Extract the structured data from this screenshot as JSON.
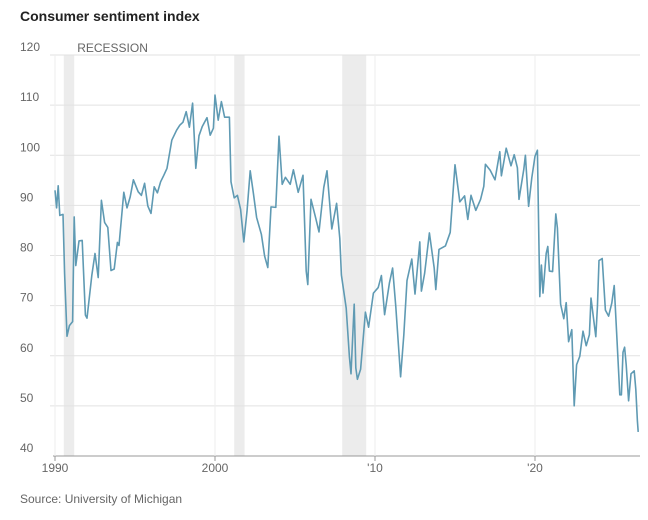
{
  "chart_data": {
    "type": "line",
    "title": "Consumer sentiment index",
    "source": "Source: University of Michigan",
    "recession_label": "RECESSION",
    "recessions": [
      [
        1990.55,
        1991.2
      ],
      [
        2001.2,
        2001.85
      ],
      [
        2007.95,
        2009.45
      ]
    ],
    "recession_color": "#ececec",
    "xlim": [
      1990,
      2026.5
    ],
    "xticks": [
      1990,
      2000,
      {
        "value": 2010,
        "label": "'10"
      },
      {
        "value": 2020,
        "label": "'20"
      }
    ],
    "ylim": [
      40,
      120
    ],
    "yticks": [
      40,
      50,
      60,
      70,
      80,
      90,
      100,
      110,
      120
    ],
    "grid": true,
    "series": [
      {
        "color": "#5f9ab3",
        "x": [
          1990.0,
          1990.1,
          1990.2,
          1990.3,
          1990.5,
          1990.6,
          1990.75,
          1990.9,
          1991.1,
          1991.2,
          1991.3,
          1991.5,
          1991.7,
          1991.9,
          1992.0,
          1992.3,
          1992.5,
          1992.7,
          1992.9,
          1993.1,
          1993.3,
          1993.5,
          1993.7,
          1993.9,
          1994.0,
          1994.3,
          1994.5,
          1994.7,
          1994.9,
          1995.2,
          1995.4,
          1995.6,
          1995.8,
          1996.0,
          1996.2,
          1996.4,
          1996.6,
          1996.8,
          1997.0,
          1997.3,
          1997.6,
          1997.8,
          1998.0,
          1998.2,
          1998.4,
          1998.6,
          1998.8,
          1999.0,
          1999.2,
          1999.5,
          1999.7,
          1999.9,
          2000.0,
          2000.2,
          2000.4,
          2000.6,
          2000.9,
          2001.0,
          2001.2,
          2001.4,
          2001.6,
          2001.8,
          2002.0,
          2002.2,
          2002.4,
          2002.6,
          2002.9,
          2003.1,
          2003.3,
          2003.5,
          2003.8,
          2004.0,
          2004.2,
          2004.4,
          2004.7,
          2004.9,
          2005.2,
          2005.5,
          2005.7,
          2005.8,
          2006.0,
          2006.3,
          2006.5,
          2006.8,
          2007.0,
          2007.3,
          2007.6,
          2007.8,
          2007.9,
          2008.2,
          2008.4,
          2008.5,
          2008.7,
          2008.8,
          2008.9,
          2009.1,
          2009.4,
          2009.6,
          2009.9,
          2010.2,
          2010.4,
          2010.6,
          2010.9,
          2011.1,
          2011.3,
          2011.6,
          2011.8,
          2012.0,
          2012.3,
          2012.5,
          2012.8,
          2012.9,
          2013.1,
          2013.4,
          2013.7,
          2013.8,
          2014.0,
          2014.4,
          2014.7,
          2014.9,
          2015.0,
          2015.3,
          2015.6,
          2015.8,
          2016.0,
          2016.3,
          2016.6,
          2016.8,
          2016.9,
          2017.2,
          2017.5,
          2017.8,
          2017.9,
          2018.2,
          2018.5,
          2018.7,
          2018.9,
          2019.0,
          2019.3,
          2019.4,
          2019.6,
          2019.8,
          2020.0,
          2020.15,
          2020.3,
          2020.4,
          2020.5,
          2020.7,
          2020.8,
          2020.9,
          2021.1,
          2021.3,
          2021.4,
          2021.6,
          2021.8,
          2021.95,
          2022.1,
          2022.3,
          2022.45,
          2022.6,
          2022.8,
          2023.0,
          2023.2,
          2023.4,
          2023.5,
          2023.8,
          2023.9,
          2024.0,
          2024.2,
          2024.4,
          2024.6,
          2024.8,
          2024.95,
          2025.1,
          2025.3,
          2025.4,
          2025.5,
          2025.6,
          2025.7,
          2025.85,
          2026.0,
          2026.2,
          2026.3,
          2026.4,
          2026.45
        ],
        "values": [
          93,
          89.5,
          93.9,
          88,
          88.2,
          76.4,
          63.9,
          66,
          66.8,
          87.7,
          78,
          82.9,
          83,
          68.1,
          67.5,
          76,
          80.4,
          75.6,
          91,
          86.6,
          85.6,
          77,
          77.3,
          82.6,
          82,
          92.6,
          89.5,
          91.7,
          95.1,
          92.7,
          92,
          94.4,
          89.9,
          88.4,
          93.7,
          92.5,
          94.7,
          96,
          97.4,
          103,
          105,
          106,
          106.6,
          108.7,
          105.6,
          110.4,
          97.4,
          103.9,
          105.7,
          107.5,
          104,
          105.4,
          112,
          107,
          110.7,
          107.6,
          107.6,
          94.7,
          91.5,
          92,
          89.2,
          82.7,
          88.8,
          96.9,
          92.4,
          87.6,
          84.2,
          79.9,
          77.6,
          89.7,
          89.6,
          103.8,
          94.2,
          95.6,
          94.2,
          97.1,
          92.6,
          96,
          76.9,
          74.2,
          91.2,
          87.4,
          84.7,
          93.6,
          96.9,
          85.3,
          90.4,
          83.4,
          76.1,
          69.5,
          59.8,
          56.4,
          70.3,
          57.6,
          55.3,
          57.3,
          68.7,
          65.7,
          72.5,
          73.6,
          76,
          68.2,
          74.5,
          77.5,
          69.8,
          55.8,
          64.1,
          75,
          79.3,
          72.3,
          82.7,
          72.9,
          76.4,
          84.5,
          77.5,
          73.2,
          81.2,
          81.9,
          84.6,
          93.6,
          98.1,
          90.7,
          91.9,
          87.2,
          92,
          89,
          91.2,
          93.8,
          98.2,
          97,
          95.1,
          100.7,
          95.9,
          101.4,
          97.9,
          100.1,
          97.5,
          91.2,
          97.2,
          100,
          89.8,
          95.5,
          99.8,
          101,
          71.8,
          78.1,
          72.5,
          80.4,
          81.8,
          76.9,
          76.8,
          88.3,
          85.5,
          70.3,
          67.4,
          70.6,
          62.8,
          65.2,
          50,
          58.2,
          59.9,
          64.9,
          62,
          64.2,
          71.5,
          63.8,
          69.7,
          79,
          79.4,
          69.1,
          67.9,
          70.5,
          74,
          64.7,
          52.2,
          52.2,
          60.7,
          61.7,
          58.2,
          51,
          56.4,
          57,
          53.3,
          47,
          44.8
        ]
      }
    ]
  }
}
